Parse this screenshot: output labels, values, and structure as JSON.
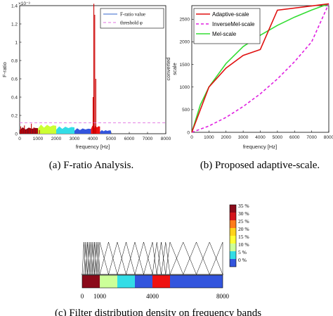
{
  "chart_data": [
    {
      "id": "a",
      "type": "bar",
      "caption": "(a) F-ratio Analysis.",
      "xlabel": "frequency [Hz]",
      "ylabel": "F-ratio",
      "exponent_label": "×10⁻³",
      "xlim": [
        0,
        8000
      ],
      "ylim": [
        0,
        1.4
      ],
      "xticks": [
        "0",
        "1000",
        "2000",
        "3000",
        "4000",
        "5000",
        "6000",
        "7000",
        "8000"
      ],
      "yticks": [
        "0",
        "0.2",
        "0.4",
        "0.6",
        "0.8",
        "1",
        "1.2",
        "1.4"
      ],
      "legend": [
        "F-ratio value",
        "threshold φ"
      ],
      "threshold": 0.12,
      "spikes": [
        {
          "x": 60,
          "y": 0.08
        },
        {
          "x": 150,
          "y": 0.05
        },
        {
          "x": 260,
          "y": 0.09
        },
        {
          "x": 380,
          "y": 0.04
        },
        {
          "x": 520,
          "y": 0.06
        },
        {
          "x": 640,
          "y": 0.11
        },
        {
          "x": 780,
          "y": 0.07
        },
        {
          "x": 930,
          "y": 0.05
        },
        {
          "x": 1080,
          "y": 0.04
        },
        {
          "x": 4020,
          "y": 0.4
        },
        {
          "x": 4060,
          "y": 1.42
        },
        {
          "x": 4110,
          "y": 1.3
        },
        {
          "x": 4170,
          "y": 0.6
        }
      ],
      "colored_regions": [
        {
          "color": "#8b0a1a",
          "from": 0,
          "to": 1000,
          "peak": 0.07
        },
        {
          "color": "#ccff33",
          "from": 1000,
          "to": 2000,
          "peak": 0.1
        },
        {
          "color": "#33dde6",
          "from": 2000,
          "to": 3000,
          "peak": 0.08
        },
        {
          "color": "#3355dd",
          "from": 3000,
          "to": 3900,
          "peak": 0.06
        },
        {
          "color": "#ee1111",
          "from": 3900,
          "to": 4400,
          "peak": 0.09
        },
        {
          "color": "#3355dd",
          "from": 4400,
          "to": 5000,
          "peak": 0.04
        }
      ]
    },
    {
      "id": "b",
      "type": "line",
      "caption": "(b) Proposed adaptive-scale.",
      "xlabel": "frequency [Hz]",
      "ylabel": "converted scale",
      "xlim": [
        0,
        8000
      ],
      "ylim": [
        0,
        2800
      ],
      "xticks": [
        "0",
        "1000",
        "2000",
        "3000",
        "4000",
        "5000",
        "6000",
        "7000",
        "8000"
      ],
      "yticks": [
        "0",
        "500",
        "1000",
        "1500",
        "2000",
        "2500"
      ],
      "series": [
        {
          "name": "Adaptive-scale",
          "color": "#e01010",
          "dash": "",
          "x": [
            0,
            1000,
            2000,
            3000,
            4000,
            5000,
            8000
          ],
          "y": [
            0,
            1000,
            1420,
            1700,
            1830,
            2700,
            2840
          ]
        },
        {
          "name": "InverseMel-scale",
          "color": "#e020e0",
          "dash": "4,3",
          "x": [
            0,
            1000,
            2000,
            3000,
            4000,
            5000,
            6000,
            7000,
            8000
          ],
          "y": [
            0,
            140,
            330,
            570,
            850,
            1180,
            1560,
            2000,
            2840
          ]
        },
        {
          "name": "Mel-scale",
          "color": "#33dd33",
          "dash": "",
          "x": [
            0,
            500,
            1000,
            2000,
            3000,
            4000,
            5000,
            6000,
            7000,
            8000
          ],
          "y": [
            0,
            607,
            1000,
            1521,
            1895,
            2146,
            2363,
            2546,
            2703,
            2840
          ]
        }
      ]
    },
    {
      "id": "c",
      "type": "heatmap",
      "caption": "(c) Filter distribution density on frequency bands",
      "xlim": [
        0,
        8000
      ],
      "bottom_ticks": [
        "0",
        "1000",
        "4000",
        "8000"
      ],
      "bottom_tick_values": [
        0,
        1000,
        4000,
        8000
      ],
      "bands": [
        {
          "from": 0,
          "to": 1000,
          "color": "#8b0a1a",
          "density": 35
        },
        {
          "from": 1000,
          "to": 2000,
          "color": "#ccff99",
          "density": 15
        },
        {
          "from": 2000,
          "to": 3000,
          "color": "#33dde6",
          "density": 10
        },
        {
          "from": 3000,
          "to": 4000,
          "color": "#3355dd",
          "density": 5
        },
        {
          "from": 4000,
          "to": 5000,
          "color": "#ee1111",
          "density": 30
        },
        {
          "from": 5000,
          "to": 8000,
          "color": "#3355dd",
          "density": 3
        }
      ],
      "filter_peaks": [
        100,
        200,
        300,
        400,
        500,
        600,
        700,
        800,
        900,
        1000,
        1500,
        2000,
        2500,
        3000,
        3500,
        4000,
        4250,
        4500,
        4750,
        5000,
        5750,
        6500,
        7250,
        8000
      ],
      "colorbar": [
        {
          "label": "35 %",
          "color": "#8b0a1a"
        },
        {
          "label": "30 %",
          "color": "#d4141c"
        },
        {
          "label": "25 %",
          "color": "#ff7a1a"
        },
        {
          "label": "20 %",
          "color": "#ffd21a"
        },
        {
          "label": "15 %",
          "color": "#ffff33"
        },
        {
          "label": "10 %",
          "color": "#ccff99"
        },
        {
          "label": "5 %",
          "color": "#33dde6"
        },
        {
          "label": "0 %",
          "color": "#3355dd"
        }
      ]
    }
  ]
}
